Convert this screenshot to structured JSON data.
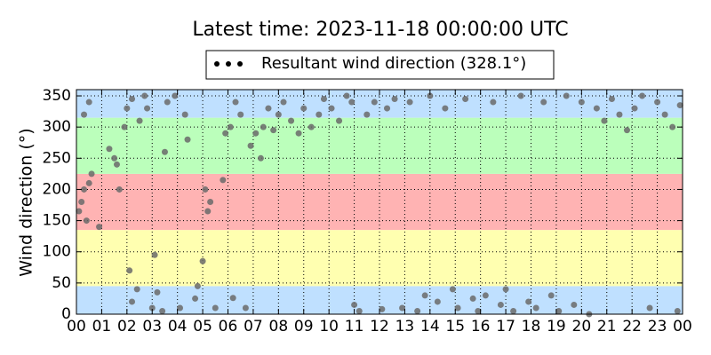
{
  "chart_data": {
    "type": "scatter",
    "title": "Latest time: 2023-11-18 00:00:00 UTC",
    "y_label": "Wind direction (°)",
    "xlim": [
      0,
      24
    ],
    "ylim": [
      0,
      360
    ],
    "xticks": [
      {
        "value": 0,
        "label": "00"
      },
      {
        "value": 1,
        "label": "01"
      },
      {
        "value": 2,
        "label": "02"
      },
      {
        "value": 3,
        "label": "03"
      },
      {
        "value": 4,
        "label": "04"
      },
      {
        "value": 5,
        "label": "05"
      },
      {
        "value": 6,
        "label": "06"
      },
      {
        "value": 7,
        "label": "07"
      },
      {
        "value": 8,
        "label": "08"
      },
      {
        "value": 9,
        "label": "09"
      },
      {
        "value": 10,
        "label": "10"
      },
      {
        "value": 11,
        "label": "11"
      },
      {
        "value": 12,
        "label": "12"
      },
      {
        "value": 13,
        "label": "13"
      },
      {
        "value": 14,
        "label": "14"
      },
      {
        "value": 15,
        "label": "15"
      },
      {
        "value": 16,
        "label": "16"
      },
      {
        "value": 17,
        "label": "17"
      },
      {
        "value": 18,
        "label": "18"
      },
      {
        "value": 19,
        "label": "19"
      },
      {
        "value": 20,
        "label": "20"
      },
      {
        "value": 21,
        "label": "21"
      },
      {
        "value": 22,
        "label": "22"
      },
      {
        "value": 23,
        "label": "23"
      },
      {
        "value": 24,
        "label": "00"
      }
    ],
    "yticks": [
      0,
      50,
      100,
      150,
      200,
      250,
      300,
      350
    ],
    "grid": true,
    "bands": [
      {
        "from": 0,
        "to": 45,
        "color": "#bfe0ff"
      },
      {
        "from": 45,
        "to": 135,
        "color": "#ffffb0"
      },
      {
        "from": 135,
        "to": 225,
        "color": "#ffb3b3"
      },
      {
        "from": 225,
        "to": 315,
        "color": "#bbffbb"
      },
      {
        "from": 315,
        "to": 360,
        "color": "#bfe0ff"
      }
    ],
    "legend": "top",
    "series": [
      {
        "name": "Resultant wind direction (328.1°)",
        "color": "#6a6a6a",
        "x": [
          0.1,
          0.2,
          0.3,
          0.4,
          0.5,
          0.6,
          0.3,
          0.5,
          0.9,
          1.3,
          1.5,
          1.6,
          1.7,
          1.9,
          2.0,
          2.2,
          2.1,
          2.2,
          2.4,
          2.5,
          2.7,
          2.8,
          3.0,
          3.1,
          3.2,
          3.4,
          3.5,
          3.6,
          3.9,
          4.1,
          4.3,
          4.4,
          4.7,
          4.8,
          5.0,
          5.1,
          5.2,
          5.3,
          5.5,
          5.8,
          5.9,
          6.1,
          6.2,
          6.3,
          6.5,
          6.7,
          6.9,
          7.1,
          7.3,
          7.4,
          7.6,
          7.8,
          8.0,
          8.2,
          8.5,
          8.8,
          9.0,
          9.3,
          9.6,
          9.8,
          10.1,
          10.4,
          10.7,
          10.9,
          11.0,
          11.2,
          11.5,
          11.8,
          12.1,
          12.3,
          12.6,
          12.9,
          13.2,
          13.5,
          13.8,
          14.0,
          14.3,
          14.6,
          14.9,
          15.1,
          15.4,
          15.7,
          15.9,
          16.2,
          16.5,
          16.8,
          17.0,
          17.3,
          17.6,
          17.9,
          18.2,
          18.5,
          18.8,
          19.1,
          19.4,
          19.7,
          20.0,
          20.3,
          20.6,
          20.9,
          21.2,
          21.5,
          21.8,
          22.1,
          22.4,
          22.7,
          23.0,
          23.3,
          23.6,
          23.8,
          23.9
        ],
        "values": [
          165,
          180,
          200,
          150,
          210,
          225,
          320,
          340,
          140,
          265,
          250,
          240,
          200,
          300,
          330,
          345,
          70,
          20,
          40,
          310,
          350,
          330,
          10,
          95,
          35,
          5,
          260,
          340,
          350,
          10,
          320,
          280,
          25,
          45,
          85,
          200,
          165,
          180,
          10,
          215,
          290,
          300,
          26,
          340,
          320,
          10,
          270,
          290,
          250,
          300,
          330,
          295,
          320,
          340,
          310,
          290,
          330,
          300,
          320,
          345,
          330,
          310,
          350,
          340,
          15,
          5,
          320,
          340,
          8,
          330,
          345,
          10,
          340,
          5,
          30,
          350,
          20,
          330,
          40,
          10,
          345,
          25,
          5,
          30,
          340,
          15,
          40,
          5,
          350,
          20,
          10,
          340,
          30,
          5,
          350,
          15,
          340,
          0,
          330,
          310,
          345,
          320,
          295,
          330,
          350,
          10,
          340,
          320,
          300,
          5,
          335
        ]
      }
    ]
  }
}
